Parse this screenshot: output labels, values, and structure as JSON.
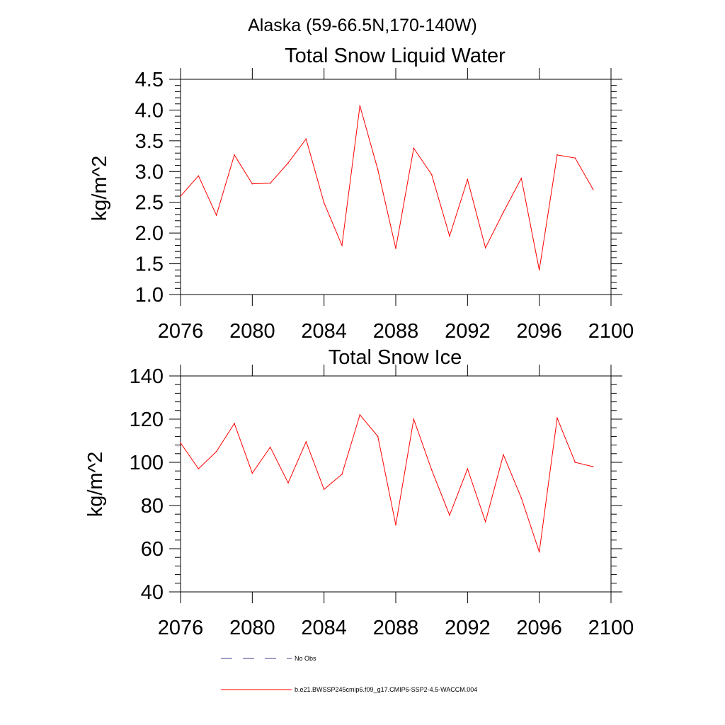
{
  "figure": {
    "title": "Alaska (59-66.5N,170-140W)"
  },
  "colors": {
    "model_line": "#ff0000",
    "obs_line": "#3d3d8f",
    "axis": "#000000"
  },
  "legend": {
    "placement": "bottom",
    "entries": [
      {
        "label": "No Obs",
        "style": "dashed",
        "color_key": "obs_line"
      },
      {
        "label": "b.e21.BWSSP245cmip6.f09_g17.CMIP6-SSP2-4.5-WACCM.004",
        "style": "solid",
        "color_key": "model_line"
      }
    ]
  },
  "chart_data": [
    {
      "type": "line",
      "title": "Total Snow Liquid Water",
      "xlabel": "",
      "ylabel": "kg/m^2",
      "xlim": [
        2076,
        2100
      ],
      "ylim": [
        1.0,
        4.5
      ],
      "x_ticks": [
        2076,
        2080,
        2084,
        2088,
        2092,
        2096,
        2100
      ],
      "x_tick_labels": [
        "2076",
        "2080",
        "2084",
        "2088",
        "2092",
        "2096",
        "2100"
      ],
      "y_ticks": [
        1.0,
        1.5,
        2.0,
        2.5,
        3.0,
        3.5,
        4.0,
        4.5
      ],
      "y_tick_labels": [
        "1.0",
        "1.5",
        "2.0",
        "2.5",
        "3.0",
        "3.5",
        "4.0",
        "4.5"
      ],
      "grid": false,
      "x": [
        2076,
        2077,
        2078,
        2079,
        2080,
        2081,
        2082,
        2083,
        2084,
        2085,
        2086,
        2087,
        2088,
        2089,
        2090,
        2091,
        2092,
        2093,
        2094,
        2095,
        2096,
        2097,
        2098,
        2099
      ],
      "series": [
        {
          "name": "b.e21.BWSSP245cmip6.f09_g17.CMIP6-SSP2-4.5-WACCM.004",
          "values": [
            2.6,
            2.93,
            2.29,
            3.27,
            2.8,
            2.81,
            3.14,
            3.53,
            2.49,
            1.8,
            4.07,
            3.03,
            1.75,
            3.38,
            2.95,
            1.95,
            2.87,
            1.76,
            2.34,
            2.89,
            1.4,
            3.27,
            3.22,
            2.71
          ]
        }
      ]
    },
    {
      "type": "line",
      "title": "Total Snow Ice",
      "xlabel": "",
      "ylabel": "kg/m^2",
      "xlim": [
        2076,
        2100
      ],
      "ylim": [
        40,
        140
      ],
      "x_ticks": [
        2076,
        2080,
        2084,
        2088,
        2092,
        2096,
        2100
      ],
      "x_tick_labels": [
        "2076",
        "2080",
        "2084",
        "2088",
        "2092",
        "2096",
        "2100"
      ],
      "y_ticks": [
        40,
        60,
        80,
        100,
        120,
        140
      ],
      "y_tick_labels": [
        "40",
        "60",
        "80",
        "100",
        "120",
        "140"
      ],
      "grid": false,
      "x": [
        2076,
        2077,
        2078,
        2079,
        2080,
        2081,
        2082,
        2083,
        2084,
        2085,
        2086,
        2087,
        2088,
        2089,
        2090,
        2091,
        2092,
        2093,
        2094,
        2095,
        2096,
        2097,
        2098,
        2099
      ],
      "series": [
        {
          "name": "b.e21.BWSSP245cmip6.f09_g17.CMIP6-SSP2-4.5-WACCM.004",
          "values": [
            109,
            97,
            105,
            118,
            95,
            107,
            90.5,
            109.5,
            87.5,
            94.5,
            122,
            112,
            71,
            120,
            96.5,
            75.5,
            97,
            72.5,
            103.5,
            83.5,
            58.5,
            120.5,
            100,
            98
          ]
        }
      ]
    }
  ]
}
